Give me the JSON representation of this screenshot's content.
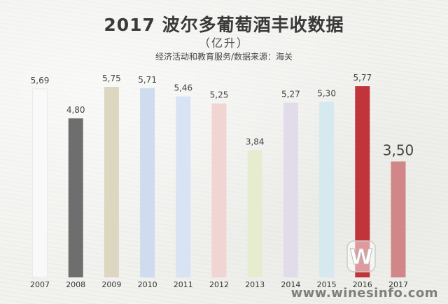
{
  "chart_title": "2017 波尔多葡萄酒丰收数据",
  "chart_unit": "（亿升）",
  "chart_source": "经济活动和教育服务/数据来源：海关",
  "watermark": "www.winesinfo.com",
  "chart_data": {
    "type": "bar",
    "title": "2017 波尔多葡萄酒丰收数据",
    "subtitle": "（亿升）",
    "xlabel": "",
    "ylabel": "",
    "categories": [
      "2007",
      "2008",
      "2009",
      "2010",
      "2011",
      "2012",
      "2013",
      "2014",
      "2015",
      "2016",
      "2017"
    ],
    "values": [
      5.69,
      4.8,
      5.75,
      5.71,
      5.46,
      5.25,
      3.84,
      5.27,
      5.3,
      5.77,
      3.5
    ],
    "value_labels": [
      "5,69",
      "4,80",
      "5,75",
      "5,71",
      "5,46",
      "5,25",
      "3,84",
      "5,27",
      "5,30",
      "5,77",
      "3,50"
    ],
    "colors": [
      "#f9f9f9",
      "#6e6e6e",
      "#ddd6c0",
      "#cfdcef",
      "#d8e4f3",
      "#f1d5d3",
      "#e6eccf",
      "#e2dcea",
      "#d6e9ee",
      "#c0343a",
      "#d18688"
    ],
    "ylim": [
      0,
      6.5
    ],
    "grid": false,
    "legend": "none"
  }
}
